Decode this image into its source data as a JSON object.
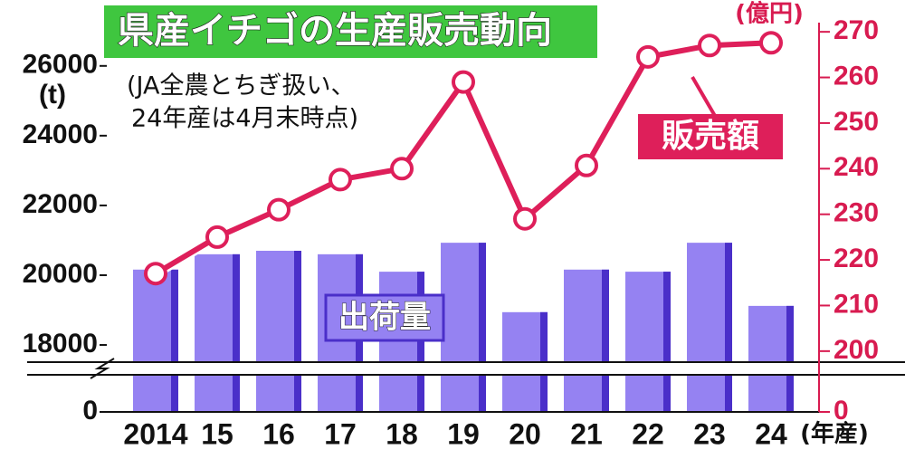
{
  "chart_data": {
    "type": "bar_line",
    "title": "県産イチゴの生産販売動向",
    "annotation": [
      "(JA全農とちぎ扱い、",
      "24年産は4月末時点)"
    ],
    "y_unit": "(t)",
    "y2_unit": "(億円)",
    "x_unit": "(年産)",
    "categories": [
      "2014",
      "15",
      "16",
      "17",
      "18",
      "19",
      "20",
      "21",
      "22",
      "23",
      "24"
    ],
    "series": [
      {
        "name": "出荷量",
        "color": "#9582f2",
        "values": [
          20160,
          20600,
          20700,
          20600,
          20100,
          20930,
          18940,
          20160,
          20100,
          20930,
          19120
        ]
      },
      {
        "name": "販売額",
        "color": "#de1f5a",
        "axis": "y2",
        "values": [
          217,
          225,
          231,
          237.6,
          240,
          259,
          229,
          240.7,
          264.5,
          267,
          267.6
        ]
      }
    ],
    "ylim": [
      0,
      27500
    ],
    "ybreak": 17300,
    "yticks": [
      0,
      18000,
      20000,
      22000,
      24000,
      26000
    ],
    "y2lim": [
      0,
      274
    ],
    "y2break": 196,
    "y2ticks": [
      0,
      200,
      210,
      220,
      230,
      240,
      250,
      260,
      270
    ]
  }
}
